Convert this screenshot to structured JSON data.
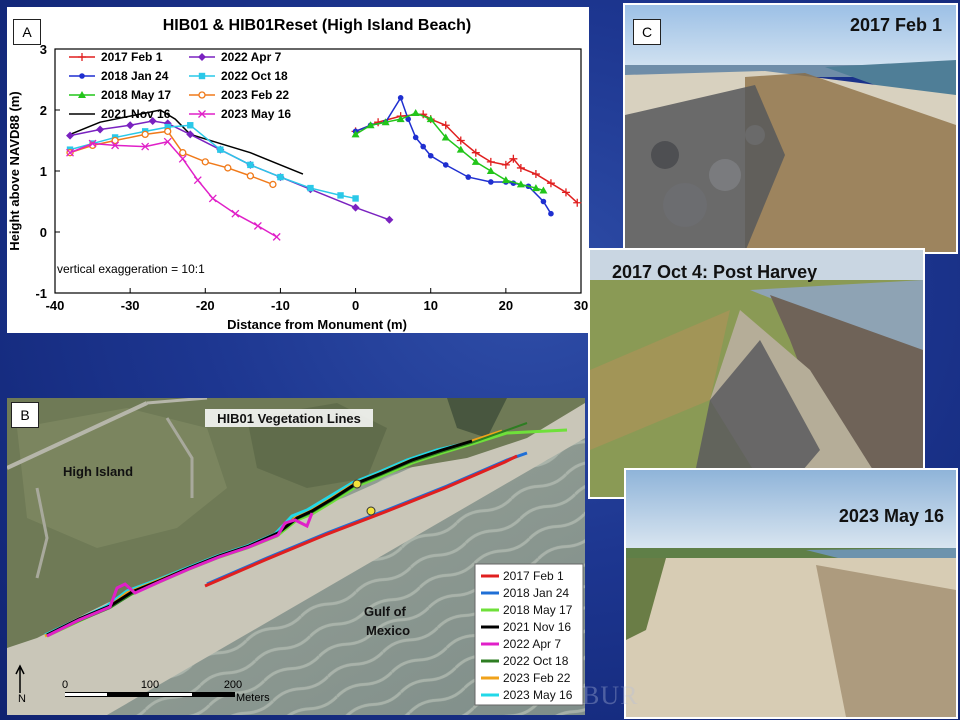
{
  "panel_a": {
    "label": "A",
    "annotation": "vertical exaggeration = 10:1"
  },
  "panel_b": {
    "label": "B",
    "title": "HIB01 Vegetation Lines",
    "place_labels": [
      "High Island",
      "Gulf of",
      "Mexico"
    ],
    "north_label": "N",
    "scale_ticks": [
      "0",
      "100",
      "200"
    ],
    "scale_unit": "Meters",
    "legend": [
      {
        "label": "2017 Feb 1",
        "color": "#e01f1f"
      },
      {
        "label": "2018 Jan 24",
        "color": "#1f6fd6"
      },
      {
        "label": "2018 May 17",
        "color": "#6fe03a"
      },
      {
        "label": "2021 Nov 16",
        "color": "#000000"
      },
      {
        "label": "2022 Apr 7",
        "color": "#e020c8"
      },
      {
        "label": "2022 Oct 18",
        "color": "#2e7d22"
      },
      {
        "label": "2023 Feb 22",
        "color": "#f0a21a"
      },
      {
        "label": "2023 May 16",
        "color": "#22d8e8"
      }
    ]
  },
  "panel_c": {
    "label": "C",
    "captions": [
      "2017 Feb 1",
      "2017 Oct 4: Post Harvey",
      "2023 May 16"
    ]
  },
  "watermark": "BUR",
  "chart_data": {
    "type": "line",
    "title": "HIB01 & HIB01Reset (High Island Beach)",
    "xlabel": "Distance from Monument (m)",
    "ylabel": "Height above NAVD88 (m)",
    "xlim": [
      -40,
      30
    ],
    "ylim": [
      -1,
      3
    ],
    "xticks": [
      "-40",
      "-30",
      "-20",
      "-10",
      "0",
      "10",
      "20",
      "30"
    ],
    "yticks": [
      "-1",
      "0",
      "1",
      "2",
      "3"
    ],
    "grid": false,
    "legend_position": "top-left",
    "series": [
      {
        "name": "2017 Feb 1",
        "color": "#e01f1f",
        "marker": "+",
        "x": [
          0,
          3,
          6,
          9,
          10,
          12,
          14,
          16,
          18,
          20,
          21,
          22,
          24,
          26,
          28,
          29.5
        ],
        "y": [
          1.65,
          1.8,
          1.9,
          1.93,
          1.85,
          1.75,
          1.5,
          1.3,
          1.15,
          1.1,
          1.2,
          1.05,
          0.95,
          0.8,
          0.65,
          0.48
        ]
      },
      {
        "name": "2018 Jan 24",
        "color": "#1f2fd0",
        "marker": "dot",
        "x": [
          0,
          2,
          4,
          6,
          7,
          8,
          9,
          10,
          12,
          15,
          18,
          20,
          21,
          23,
          25,
          26
        ],
        "y": [
          1.65,
          1.75,
          1.8,
          2.2,
          1.85,
          1.55,
          1.4,
          1.25,
          1.1,
          0.9,
          0.82,
          0.82,
          0.8,
          0.75,
          0.5,
          0.3
        ]
      },
      {
        "name": "2018 May 17",
        "color": "#22c51a",
        "marker": "triangle",
        "x": [
          0,
          2,
          4,
          6,
          8,
          10,
          12,
          14,
          16,
          18,
          20,
          22,
          24,
          25
        ],
        "y": [
          1.6,
          1.75,
          1.8,
          1.85,
          1.95,
          1.85,
          1.55,
          1.35,
          1.15,
          1.0,
          0.85,
          0.78,
          0.72,
          0.68
        ]
      },
      {
        "name": "2021 Nov 16",
        "color": "#000000",
        "marker": "none",
        "x": [
          -38,
          -34,
          -30,
          -26,
          -24,
          -22,
          -18,
          -14,
          -10,
          -7
        ],
        "y": [
          1.6,
          1.8,
          1.9,
          2.0,
          1.85,
          1.6,
          1.45,
          1.3,
          1.1,
          0.95
        ]
      },
      {
        "name": "2022 Apr 7",
        "color": "#7a22c0",
        "marker": "diamond",
        "x": [
          -38,
          -34,
          -30,
          -27,
          -25,
          -22,
          -18,
          -14,
          -10,
          -6,
          0,
          4.5
        ],
        "y": [
          1.58,
          1.68,
          1.75,
          1.82,
          1.78,
          1.6,
          1.35,
          1.1,
          0.9,
          0.7,
          0.4,
          0.2
        ]
      },
      {
        "name": "2022 Oct 18",
        "color": "#2ac8e8",
        "marker": "square",
        "x": [
          -38,
          -35,
          -32,
          -28,
          -25,
          -22,
          -18,
          -14,
          -10,
          -6,
          -2,
          0
        ],
        "y": [
          1.35,
          1.45,
          1.55,
          1.65,
          1.72,
          1.75,
          1.35,
          1.1,
          0.9,
          0.72,
          0.6,
          0.55
        ]
      },
      {
        "name": "2023 Feb 22",
        "color": "#f07a1a",
        "marker": "circle",
        "x": [
          -38,
          -35,
          -32,
          -28,
          -25,
          -23,
          -20,
          -17,
          -14,
          -11
        ],
        "y": [
          1.3,
          1.42,
          1.5,
          1.6,
          1.65,
          1.3,
          1.15,
          1.05,
          0.92,
          0.78
        ]
      },
      {
        "name": "2023 May 16",
        "color": "#e020c8",
        "marker": "x",
        "x": [
          -38,
          -35,
          -32,
          -28,
          -25,
          -23,
          -21,
          -19,
          -16,
          -13,
          -10.5
        ],
        "y": [
          1.3,
          1.45,
          1.42,
          1.4,
          1.48,
          1.2,
          0.85,
          0.55,
          0.3,
          0.1,
          -0.08
        ]
      }
    ]
  }
}
